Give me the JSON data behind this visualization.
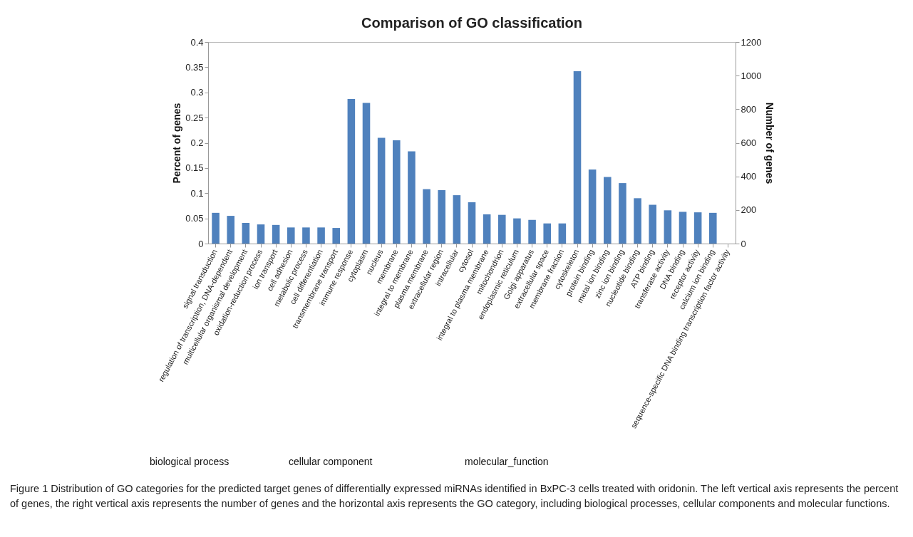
{
  "chart_data": {
    "type": "bar",
    "title": "Comparison of GO classification",
    "ylabel": "Percent of genes",
    "y2label": "Number of genes",
    "categories": [
      "signal transduction",
      "regulation of transcription, DNA-dependent",
      "multicellular organismal development",
      "oxidation-reduction process",
      "ion transport",
      "cell adhesion",
      "metabolic process",
      "cell differentiation",
      "transmembrane transport",
      "immune response",
      "cytoplasm",
      "nucleus",
      "membrane",
      "integral to membrane",
      "plasma membrane",
      "extracellular region",
      "intracellular",
      "cytosol",
      "integral to plasma membrane",
      "mitochondrion",
      "endoplasmic reticulum",
      "Golgi apparatus",
      "extracellular space",
      "membrane fraction",
      "cytoskeleton",
      "protein binding",
      "metal ion binding",
      "zinc ion binding",
      "nucleotide binding",
      "ATP binding",
      "transferase activity",
      "DNA binding",
      "receptor activity",
      "calcium ion binding",
      "sequence-specific DNA binding transcription factor activity"
    ],
    "values": [
      0.061,
      0.055,
      0.041,
      0.038,
      0.037,
      0.032,
      0.032,
      0.032,
      0.031,
      0.287,
      0.279,
      0.21,
      0.205,
      0.183,
      0.108,
      0.106,
      0.096,
      0.082,
      0.058,
      0.057,
      0.05,
      0.047,
      0.04,
      0.04,
      0.342,
      0.147,
      0.132,
      0.12,
      0.09,
      0.077,
      0.066,
      0.063,
      0.062,
      0.061,
      null
    ],
    "color": "#4f81bd",
    "ylim": [
      0,
      0.4
    ],
    "yticks": [
      0,
      0.05,
      0.1,
      0.15,
      0.2,
      0.25,
      0.3,
      0.35,
      0.4
    ],
    "y2lim": [
      0,
      1200
    ],
    "y2ticks": [
      0,
      200,
      400,
      600,
      800,
      1000,
      1200
    ],
    "annotations": [
      "biological  process",
      "cellular  component",
      "molecular_function",
      "Figure 1 Distribution of GO categories for the predicted target genes of differentially expressed miRNAs identified in BxPC-3 cells treated with oridonin. The left vertical axis represents the percent of genes, the right vertical axis represents the number of genes and the horizontal axis represents the GO category, including biological processes, cellular components and molecular functions."
    ]
  }
}
